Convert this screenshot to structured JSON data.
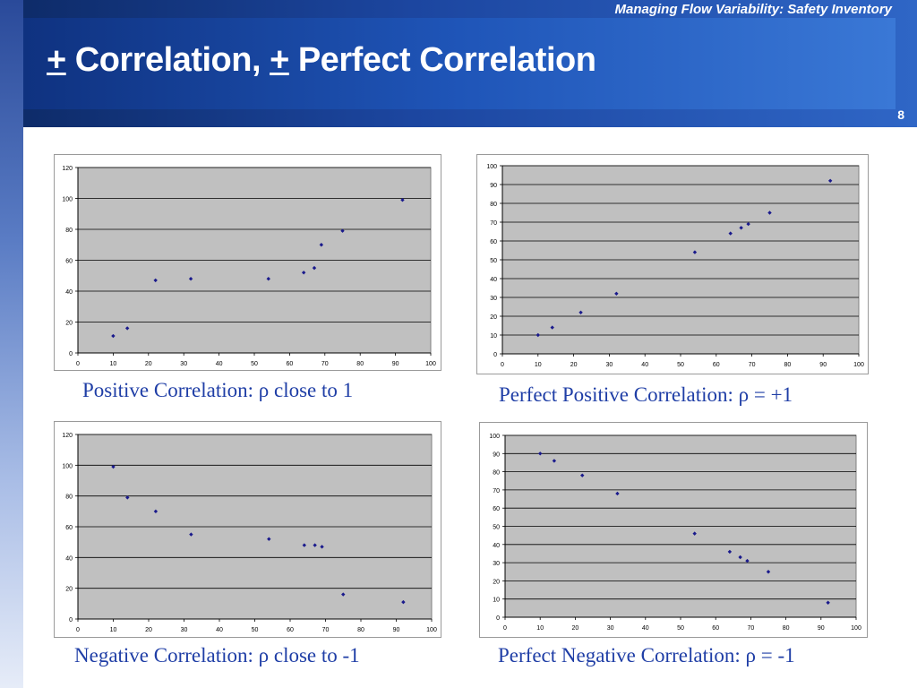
{
  "header": {
    "subtitle": "Managing Flow Variability:  Safety Inventory",
    "title_pm1": "+",
    "title_part1": " Correlation, ",
    "title_pm2": "+",
    "title_part2": " Perfect Correlation",
    "slide_number": "8"
  },
  "colors": {
    "plot_bg": "#c0c0c0",
    "marker": "#1a1a8c",
    "caption_text": "#1f3ea6",
    "header_dark": "#0d2a66",
    "header_light": "#2f66c6"
  },
  "captions": [
    "Positive Correlation: ρ close to 1",
    "Perfect Positive Correlation:  ρ = +1",
    "Negative Correlation: ρ close to -1",
    "Perfect Negative Correlation:  ρ = -1"
  ],
  "chart_data": [
    {
      "type": "scatter",
      "title": "",
      "xlim": [
        0,
        100
      ],
      "ylim": [
        0,
        120
      ],
      "xticks": [
        0,
        10,
        20,
        30,
        40,
        50,
        60,
        70,
        80,
        90,
        100
      ],
      "yticks": [
        0,
        20,
        40,
        60,
        80,
        100,
        120
      ],
      "grid": "horizontal",
      "points": [
        {
          "x": 10,
          "y": 11
        },
        {
          "x": 14,
          "y": 16
        },
        {
          "x": 22,
          "y": 47
        },
        {
          "x": 32,
          "y": 48
        },
        {
          "x": 54,
          "y": 48
        },
        {
          "x": 64,
          "y": 52
        },
        {
          "x": 67,
          "y": 55
        },
        {
          "x": 69,
          "y": 70
        },
        {
          "x": 75,
          "y": 79
        },
        {
          "x": 92,
          "y": 99
        }
      ]
    },
    {
      "type": "scatter",
      "title": "",
      "xlim": [
        0,
        100
      ],
      "ylim": [
        0,
        100
      ],
      "xticks": [
        0,
        10,
        20,
        30,
        40,
        50,
        60,
        70,
        80,
        90,
        100
      ],
      "yticks": [
        0,
        10,
        20,
        30,
        40,
        50,
        60,
        70,
        80,
        90,
        100
      ],
      "grid": "horizontal",
      "points": [
        {
          "x": 10,
          "y": 10
        },
        {
          "x": 14,
          "y": 14
        },
        {
          "x": 22,
          "y": 22
        },
        {
          "x": 32,
          "y": 32
        },
        {
          "x": 54,
          "y": 54
        },
        {
          "x": 64,
          "y": 64
        },
        {
          "x": 67,
          "y": 67
        },
        {
          "x": 69,
          "y": 69
        },
        {
          "x": 75,
          "y": 75
        },
        {
          "x": 92,
          "y": 92
        }
      ]
    },
    {
      "type": "scatter",
      "title": "",
      "xlim": [
        0,
        100
      ],
      "ylim": [
        0,
        120
      ],
      "xticks": [
        0,
        10,
        20,
        30,
        40,
        50,
        60,
        70,
        80,
        90,
        100
      ],
      "yticks": [
        0,
        20,
        40,
        60,
        80,
        100,
        120
      ],
      "grid": "horizontal",
      "points": [
        {
          "x": 10,
          "y": 99
        },
        {
          "x": 14,
          "y": 79
        },
        {
          "x": 22,
          "y": 70
        },
        {
          "x": 32,
          "y": 55
        },
        {
          "x": 54,
          "y": 52
        },
        {
          "x": 64,
          "y": 48
        },
        {
          "x": 67,
          "y": 48
        },
        {
          "x": 69,
          "y": 47
        },
        {
          "x": 75,
          "y": 16
        },
        {
          "x": 92,
          "y": 11
        }
      ]
    },
    {
      "type": "scatter",
      "title": "",
      "xlim": [
        0,
        100
      ],
      "ylim": [
        0,
        100
      ],
      "xticks": [
        0,
        10,
        20,
        30,
        40,
        50,
        60,
        70,
        80,
        90,
        100
      ],
      "yticks": [
        0,
        10,
        20,
        30,
        40,
        50,
        60,
        70,
        80,
        90,
        100
      ],
      "grid": "horizontal",
      "points": [
        {
          "x": 10,
          "y": 90
        },
        {
          "x": 14,
          "y": 86
        },
        {
          "x": 22,
          "y": 78
        },
        {
          "x": 32,
          "y": 68
        },
        {
          "x": 54,
          "y": 46
        },
        {
          "x": 64,
          "y": 36
        },
        {
          "x": 67,
          "y": 33
        },
        {
          "x": 69,
          "y": 31
        },
        {
          "x": 75,
          "y": 25
        },
        {
          "x": 92,
          "y": 8
        }
      ]
    }
  ]
}
